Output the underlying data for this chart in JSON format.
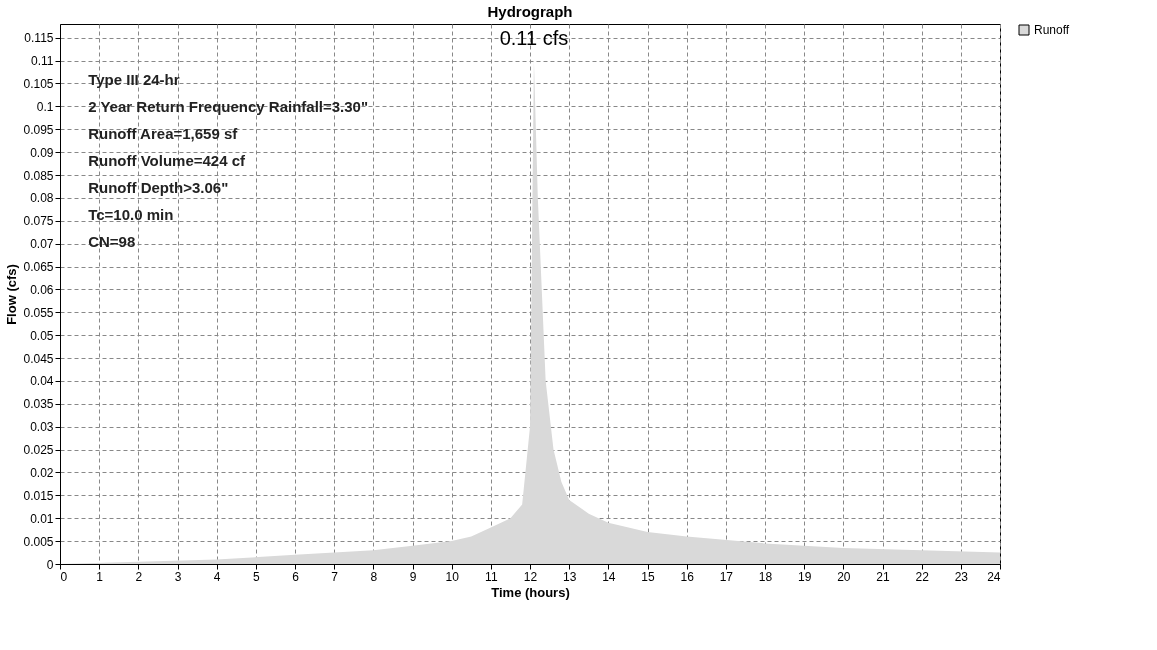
{
  "chart_data": {
    "type": "area",
    "title": "Hydrograph",
    "xlabel": "Time (hours)",
    "ylabel": "Flow (cfs)",
    "x": [
      0,
      2,
      4,
      6,
      8,
      9,
      10,
      10.5,
      11,
      11.5,
      11.8,
      12.0,
      12.1,
      12.2,
      12.4,
      12.6,
      12.8,
      13,
      13.5,
      14,
      15,
      16,
      18,
      20,
      22,
      24
    ],
    "series": [
      {
        "name": "Runoff",
        "color": "#d9d9d9",
        "values": [
          0,
          0.0005,
          0.001,
          0.002,
          0.003,
          0.004,
          0.005,
          0.006,
          0.008,
          0.01,
          0.013,
          0.03,
          0.11,
          0.08,
          0.04,
          0.025,
          0.018,
          0.014,
          0.011,
          0.009,
          0.007,
          0.006,
          0.0045,
          0.0035,
          0.003,
          0.0025
        ]
      }
    ],
    "xlim": [
      0,
      24
    ],
    "xticks": [
      0,
      1,
      2,
      3,
      4,
      5,
      6,
      7,
      8,
      9,
      10,
      11,
      12,
      13,
      14,
      15,
      16,
      17,
      18,
      19,
      20,
      21,
      22,
      23,
      24
    ],
    "ylim": [
      0,
      0.118
    ],
    "yticks": [
      0,
      0.005,
      0.01,
      0.015,
      0.02,
      0.025,
      0.03,
      0.035,
      0.04,
      0.045,
      0.05,
      0.055,
      0.06,
      0.065,
      0.07,
      0.075,
      0.08,
      0.085,
      0.09,
      0.095,
      0.1,
      0.105,
      0.11,
      0.115
    ],
    "grid": true,
    "legend": "top right",
    "annotations": [
      "Type III 24-hr",
      "2 Year Return Frequency Rainfall=3.30\"",
      "Runoff Area=1,659 sf",
      "Runoff Volume=424 cf",
      "Runoff Depth>3.06\"",
      "Tc=10.0 min",
      "CN=98",
      {
        "text": "0.11 cfs",
        "x": 12.1,
        "y": 0.11
      }
    ]
  }
}
